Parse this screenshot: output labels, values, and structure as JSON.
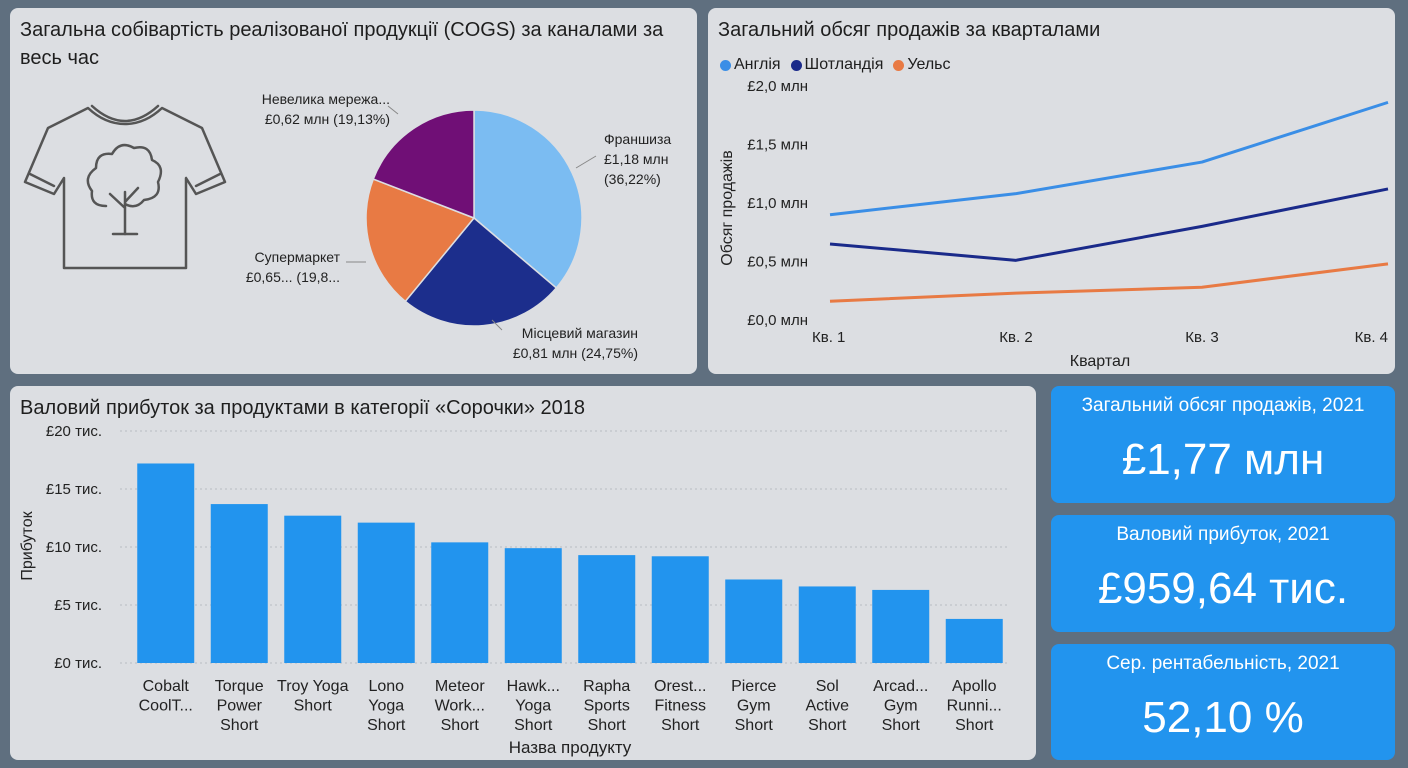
{
  "pie_panel": {
    "title_line1": "Загальна собівартість реалізованої продукції (COGS) за каналами за",
    "title_line2": "весь час",
    "tshirt_icon": "tshirt-tree-icon"
  },
  "line_panel": {
    "title": "Загальний обсяг продажів за кварталами"
  },
  "bar_panel": {
    "title": "Валовий прибуток за продуктами в категорії «Сорочки» 2018"
  },
  "kpis": [
    {
      "label": "Загальний обсяг продажів, 2021",
      "value": "£1,77 млн"
    },
    {
      "label": "Валовий прибуток, 2021",
      "value": "£959,64 тис."
    },
    {
      "label": "Сер. рентабельність, 2021",
      "value": "52,10 %"
    }
  ],
  "colors": {
    "england": "#3a8ee6",
    "scotland": "#1a2a8a",
    "wales": "#e87a44",
    "franchise": "#7bbcf2",
    "local_store": "#1c2e8c",
    "supermarket": "#e87a44",
    "small_chain": "#700f76",
    "bar": "#2294ee",
    "kpi": "#2294ee"
  },
  "chart_data": [
    {
      "type": "pie",
      "slices": [
        {
          "label_line1": "Франшиза",
          "label_line2": "£1,18 млн",
          "label_line3": "(36,22%)",
          "value": 36.22
        },
        {
          "label_line1": "Місцевий магазин",
          "label_line2": "£0,81 млн (24,75%)",
          "value": 24.75
        },
        {
          "label_line1": "Супермаркет",
          "label_line2": "£0,65... (19,8...",
          "value": 19.9
        },
        {
          "label_line1": "Невелика мережа...",
          "label_line2": "£0,62 млн (19,13%)",
          "value": 19.13
        }
      ]
    },
    {
      "type": "line",
      "categories": [
        "Кв. 1",
        "Кв. 2",
        "Кв. 3",
        "Кв. 4"
      ],
      "xlabel": "Квартал",
      "ylabel": "Обсяг продажів",
      "ylim": [
        0,
        2.0
      ],
      "yticks": [
        {
          "value": 0,
          "label": "£0,0 млн"
        },
        {
          "value": 0.5,
          "label": "£0,5 млн"
        },
        {
          "value": 1.0,
          "label": "£1,0 млн"
        },
        {
          "value": 1.5,
          "label": "£1,5 млн"
        },
        {
          "value": 2.0,
          "label": "£2,0 млн"
        }
      ],
      "legend_position": "top-left",
      "series": [
        {
          "name": "Англія",
          "values": [
            0.9,
            1.08,
            1.35,
            1.86
          ]
        },
        {
          "name": "Шотландія",
          "values": [
            0.65,
            0.51,
            0.8,
            1.12
          ]
        },
        {
          "name": "Уельс",
          "values": [
            0.16,
            0.23,
            0.28,
            0.48
          ]
        }
      ]
    },
    {
      "type": "bar",
      "xlabel": "Назва продукту",
      "ylabel": "Прибуток",
      "ylim": [
        0,
        20
      ],
      "yticks": [
        {
          "value": 0,
          "label": "£0 тис."
        },
        {
          "value": 5,
          "label": "£5 тис."
        },
        {
          "value": 10,
          "label": "£10 тис."
        },
        {
          "value": 15,
          "label": "£15 тис."
        },
        {
          "value": 20,
          "label": "£20 тис."
        }
      ],
      "grid": true,
      "categories": [
        [
          "Cobalt",
          "CoolT..."
        ],
        [
          "Torque",
          "Power",
          "Short"
        ],
        [
          "Troy Yoga",
          "Short"
        ],
        [
          "Lono",
          "Yoga",
          "Short"
        ],
        [
          "Meteor",
          "Work...",
          "Short"
        ],
        [
          "Hawk...",
          "Yoga",
          "Short"
        ],
        [
          "Rapha",
          "Sports",
          "Short"
        ],
        [
          "Orest...",
          "Fitness",
          "Short"
        ],
        [
          "Pierce",
          "Gym",
          "Short"
        ],
        [
          "Sol",
          "Active",
          "Short"
        ],
        [
          "Arcad...",
          "Gym",
          "Short"
        ],
        [
          "Apollo",
          "Runni...",
          "Short"
        ]
      ],
      "values": [
        17.2,
        13.7,
        12.7,
        12.1,
        10.4,
        9.9,
        9.3,
        9.2,
        7.2,
        6.6,
        6.3,
        3.8
      ]
    }
  ]
}
